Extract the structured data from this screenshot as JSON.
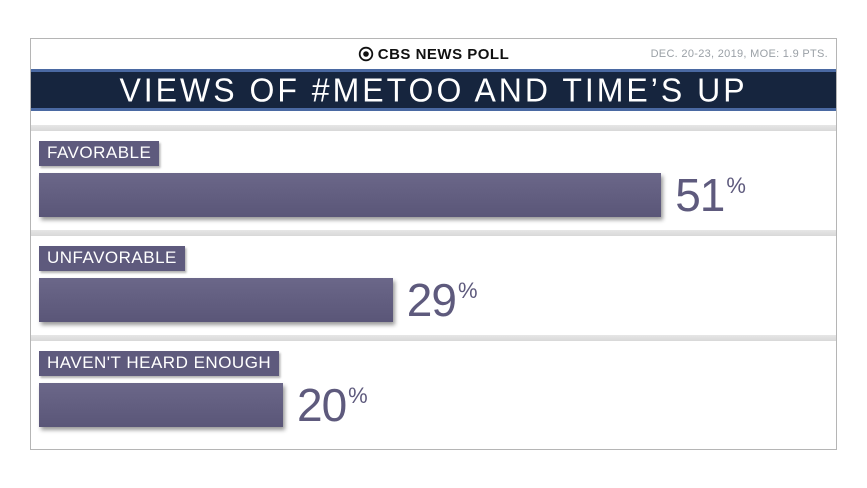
{
  "header": {
    "brand": "CBS NEWS POLL",
    "meta": "DEC. 20-23, 2019, MOE: 1.9 PTS."
  },
  "title": "VIEWS OF #METOO AND TIME’S UP",
  "chart_data": {
    "type": "bar",
    "orientation": "horizontal",
    "title": "VIEWS OF #METOO AND TIME’S UP",
    "source": "CBS NEWS POLL",
    "note": "DEC. 20-23, 2019, MOE: 1.9 PTS.",
    "categories": [
      "FAVORABLE",
      "UNFAVORABLE",
      "HAVEN'T HEARD ENOUGH"
    ],
    "values": [
      51,
      29,
      20
    ],
    "unit": "%",
    "xlim": [
      0,
      100
    ],
    "bar_color": "#5e5a7d",
    "label_color": "#ffffff",
    "value_color": "#5e5a7d",
    "title_bar_color": "#16253e",
    "title_bar_accent": "#4a69a2",
    "legend": "none",
    "grid": false
  }
}
